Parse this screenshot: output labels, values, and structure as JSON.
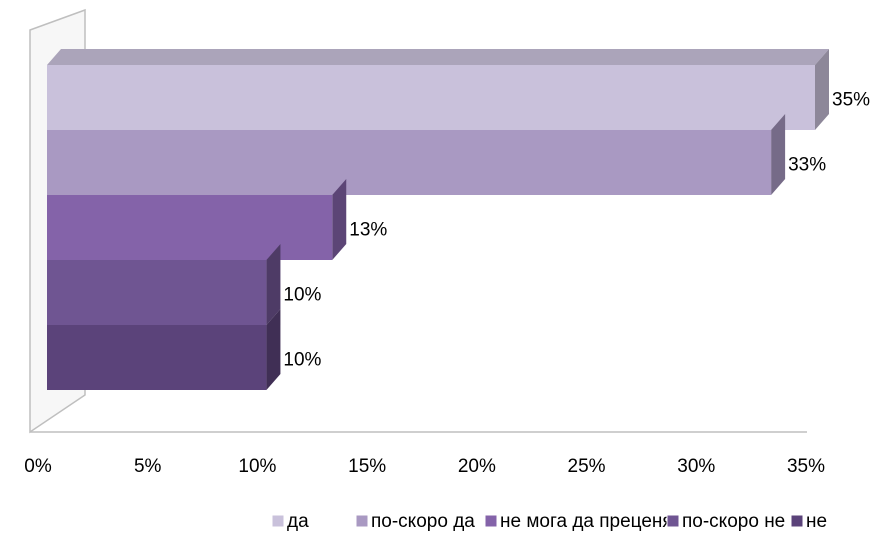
{
  "chart_data": {
    "type": "bar",
    "orientation": "horizontal",
    "series": [
      {
        "name": "да",
        "color": "#c9c1db",
        "values": [
          35
        ],
        "value_labels": [
          "35%"
        ]
      },
      {
        "name": "по-скоро да",
        "color": "#a999c2",
        "values": [
          33
        ],
        "value_labels": [
          "33%"
        ]
      },
      {
        "name": "не мога да преценя",
        "color": "#8463a9",
        "values": [
          13
        ],
        "value_labels": [
          "13%"
        ]
      },
      {
        "name": "по-скоро не",
        "color": "#6f5592",
        "values": [
          10
        ],
        "value_labels": [
          "10%"
        ]
      },
      {
        "name": "не",
        "color": "#5b437a",
        "values": [
          10
        ],
        "value_labels": [
          "10%"
        ]
      }
    ],
    "xlim": [
      0,
      35
    ],
    "xticks": [
      {
        "value": 0,
        "label": "0%"
      },
      {
        "value": 5,
        "label": "5%"
      },
      {
        "value": 10,
        "label": "10%"
      },
      {
        "value": 15,
        "label": "15%"
      },
      {
        "value": 20,
        "label": "20%"
      },
      {
        "value": 25,
        "label": "25%"
      },
      {
        "value": 30,
        "label": "30%"
      },
      {
        "value": 35,
        "label": "35%"
      }
    ],
    "legend": "bottom"
  }
}
